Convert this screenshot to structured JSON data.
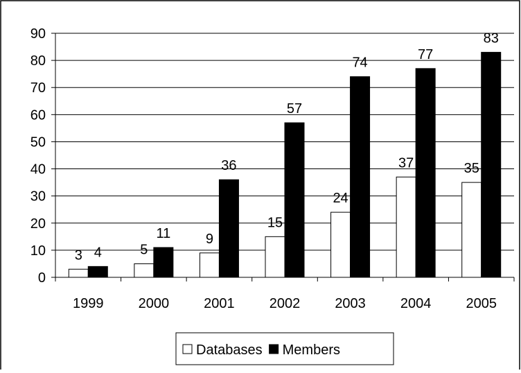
{
  "chart_data": {
    "type": "bar",
    "categories": [
      "1999",
      "2000",
      "2001",
      "2002",
      "2003",
      "2004",
      "2005"
    ],
    "series": [
      {
        "name": "Databases",
        "values": [
          3,
          5,
          9,
          15,
          24,
          37,
          35
        ],
        "color": "#ffffff",
        "stroke": "#000000"
      },
      {
        "name": "Members",
        "values": [
          4,
          11,
          36,
          57,
          74,
          77,
          83
        ],
        "color": "#000000",
        "stroke": "#000000"
      }
    ],
    "ylim": [
      0,
      90
    ],
    "y_ticks": [
      "0",
      "10",
      "20",
      "30",
      "40",
      "50",
      "60",
      "70",
      "80",
      "90"
    ],
    "grid": true,
    "legend_position": "bottom"
  }
}
